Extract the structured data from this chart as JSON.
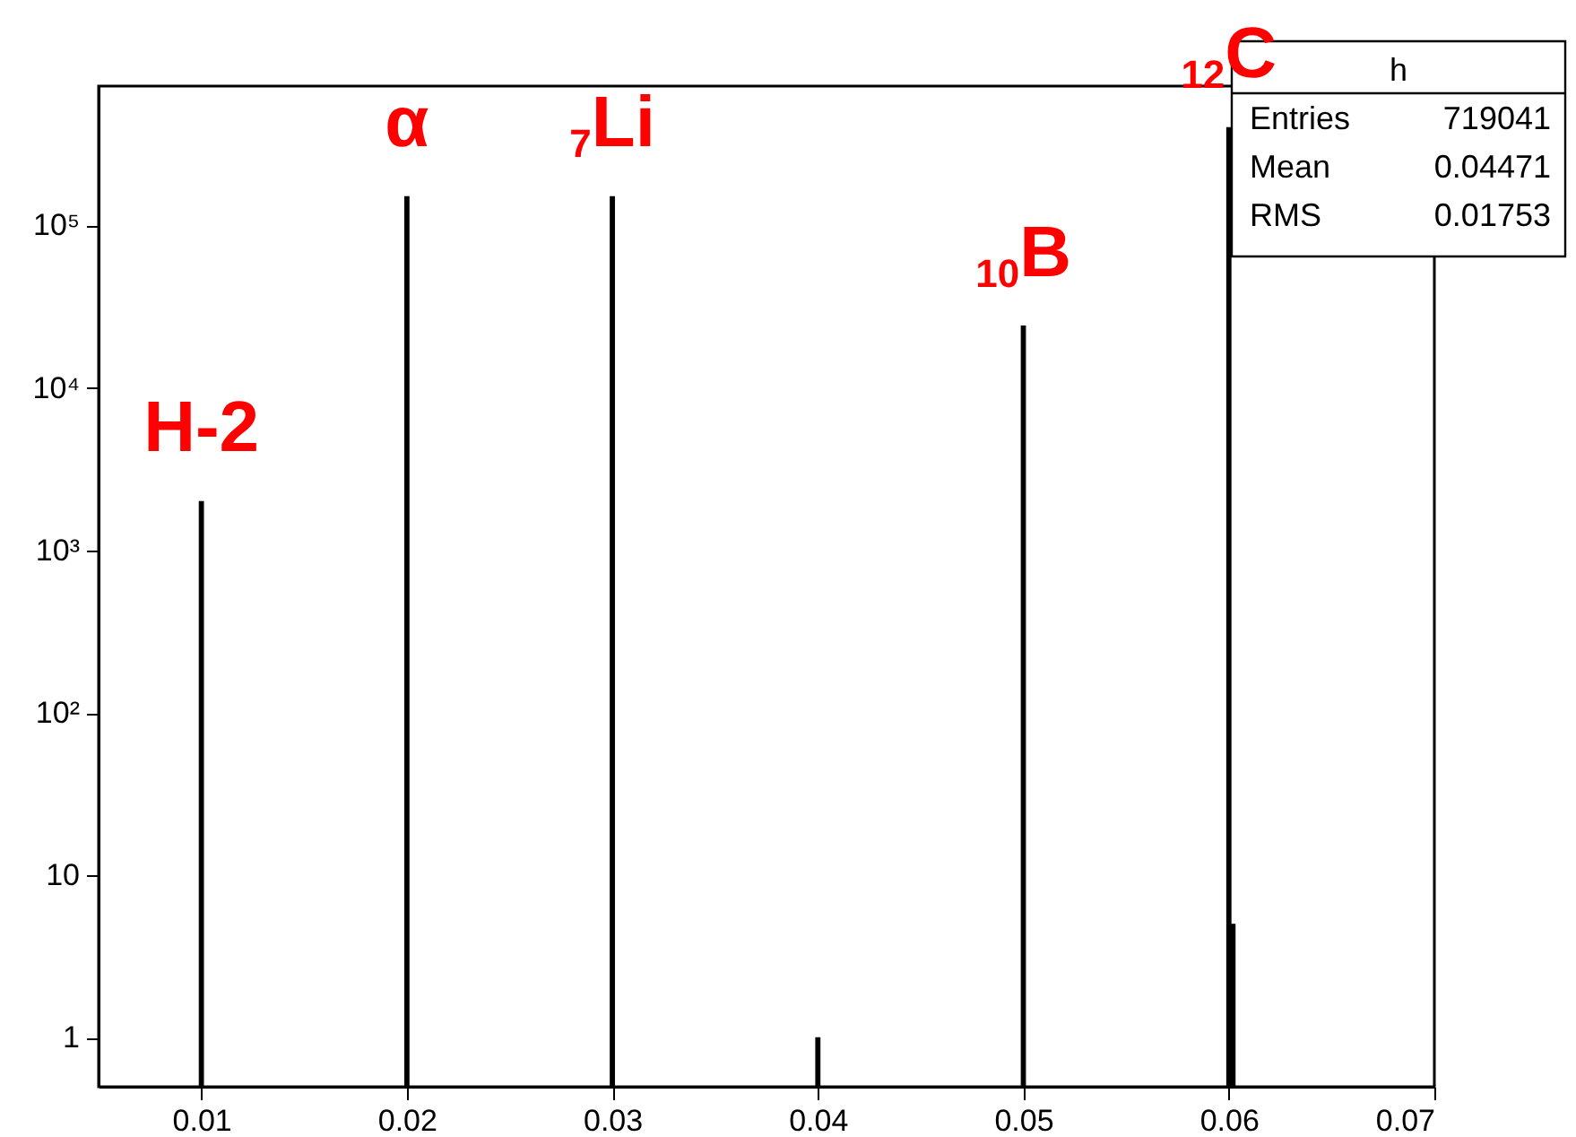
{
  "chart_data": {
    "type": "histogram",
    "bins": [
      0.0099,
      0.0101,
      0.0199,
      0.0201,
      0.0299,
      0.0301,
      0.0399,
      0.0401,
      0.0499,
      0.0501,
      0.0599,
      0.0601,
      0.0603
    ],
    "values": [
      2000,
      null,
      150000,
      null,
      150000,
      null,
      1,
      null,
      24000,
      null,
      400000,
      5
    ],
    "color": "#000000",
    "xlim": [
      0.005,
      0.07
    ],
    "xticks": [
      0.01,
      0.02,
      0.03,
      0.04,
      0.05,
      0.06,
      0.07
    ],
    "ylim": [
      0.5,
      720000
    ],
    "yticks": [
      1,
      10,
      {
        "value": 100,
        "label": "10²"
      },
      {
        "value": 1000,
        "label": "10³"
      },
      {
        "value": 10000,
        "label": "10⁴"
      },
      {
        "value": 100000,
        "label": "10⁵"
      }
    ],
    "log": "y",
    "grid": false,
    "annotations": [
      {
        "text": "H-2",
        "x": 0.01,
        "y": 2000
      },
      {
        "text": "α",
        "x": 0.02,
        "y": 150000
      },
      {
        "text": "$_{7}$Li",
        "x": 0.03,
        "y": 150000
      },
      {
        "text": "$_{10}$B",
        "x": 0.05,
        "y": 24000
      },
      {
        "text": "$_{12}$C",
        "x": 0.06,
        "y": 400000
      },
      "h",
      "Entries",
      "719041",
      "Mean",
      "0.04471",
      "RMS",
      "0.01753"
    ]
  }
}
